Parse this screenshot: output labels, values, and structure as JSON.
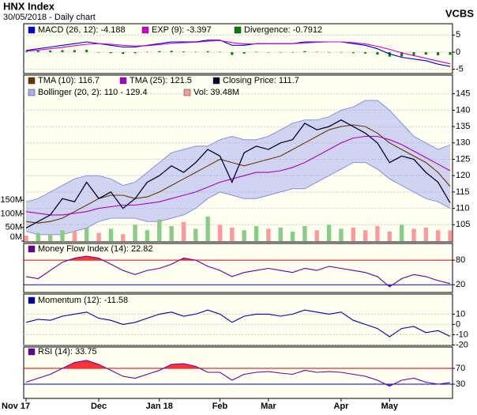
{
  "header": {
    "title": "HNX Index",
    "subtitle": "30/05/2018 - Daily chart",
    "source": "VCBS"
  },
  "chart_data": [
    {
      "type": "line",
      "ylim": [
        -6,
        6
      ],
      "yticks": [
        5,
        0,
        -5
      ],
      "series": [
        {
          "name": "MACD (26, 12): -4.188",
          "kind": "line",
          "color": "#0000cc",
          "values": [
            0.5,
            1,
            1.5,
            2,
            2.5,
            3,
            2.5,
            2,
            1.5,
            1.5,
            2,
            2.5,
            3,
            3,
            3,
            3.5,
            3.5,
            2,
            2,
            2.5,
            2.5,
            2.5,
            2.5,
            3,
            3,
            3,
            3,
            2.5,
            2,
            1,
            -0.5,
            -1.5,
            -2,
            -2.5,
            -3.5,
            -4.188
          ]
        },
        {
          "name": "EXP (9): -3.397",
          "kind": "line",
          "color": "#cc00cc",
          "values": [
            0.3,
            0.6,
            1,
            1.4,
            1.9,
            2.3,
            2.5,
            2.3,
            2,
            1.8,
            1.9,
            2.2,
            2.6,
            2.8,
            2.9,
            3.2,
            3.4,
            2.8,
            2.4,
            2.4,
            2.5,
            2.5,
            2.5,
            2.7,
            2.9,
            3,
            3,
            2.8,
            2.4,
            1.7,
            0.8,
            -0.2,
            -1,
            -1.8,
            -2.6,
            -3.397
          ]
        },
        {
          "name": "Divergence: -0.7912",
          "kind": "bar",
          "color": "#008000",
          "values": [
            0.2,
            0.4,
            0.5,
            0.6,
            0.6,
            0.7,
            0,
            -0.3,
            -0.5,
            -0.3,
            0.1,
            0.3,
            0.4,
            0.2,
            0.1,
            0.3,
            0.1,
            -0.8,
            -0.4,
            0.1,
            0,
            0,
            0,
            0.3,
            0.1,
            0,
            0,
            -0.3,
            -0.4,
            -0.7,
            -1.3,
            -1.3,
            -1,
            -0.7,
            -0.9,
            -0.7912
          ]
        }
      ]
    },
    {
      "type": "line",
      "ylim": [
        100,
        150
      ],
      "yticks": [
        105,
        110,
        115,
        120,
        125,
        130,
        135,
        140,
        145
      ],
      "y2lim": [
        0,
        600
      ],
      "y2ticks": [
        {
          "value": 0,
          "label": "0M"
        },
        {
          "value": 50,
          "label": "50M"
        },
        {
          "value": 100,
          "label": "100M"
        },
        {
          "value": 150,
          "label": "150M"
        }
      ],
      "series": [
        {
          "name": "TMA (10): 116.7",
          "kind": "line",
          "color": "#663300",
          "values": [
            106,
            105.5,
            106,
            107,
            109,
            111,
            113,
            114,
            114,
            113,
            113.5,
            115,
            117,
            119,
            121,
            123,
            125,
            124,
            123,
            124,
            125,
            126,
            128,
            130,
            132,
            134,
            135,
            135.5,
            135,
            133,
            130,
            128,
            126,
            124,
            121,
            116.7
          ]
        },
        {
          "name": "TMA (25): 121.5",
          "kind": "line",
          "color": "#aa00cc",
          "values": [
            109,
            108.5,
            108,
            108,
            108.5,
            109,
            110,
            110.5,
            111,
            111,
            111.5,
            112,
            113,
            114,
            115,
            116.5,
            118,
            119,
            120,
            121,
            121,
            121.5,
            122.5,
            124,
            126,
            128,
            130,
            131.5,
            132,
            132,
            131,
            129.5,
            127.5,
            125.5,
            123.5,
            121.5
          ]
        },
        {
          "name": "Closing Price: 111.7",
          "kind": "close",
          "color": "#000033",
          "values": [
            104,
            106,
            108,
            113,
            112,
            118,
            113,
            115,
            110,
            113,
            118,
            120,
            123,
            121,
            124,
            128,
            126,
            118,
            127,
            129,
            128,
            130,
            131,
            136,
            134,
            135,
            137,
            135,
            133,
            130,
            124,
            126,
            125,
            121,
            118,
            111.7
          ]
        },
        {
          "name": "Bollinger (20, 2): 110 - 129.4",
          "kind": "band",
          "color": "#aab0ee",
          "upper": [
            112,
            113,
            115,
            117,
            119,
            120,
            120,
            119,
            117,
            118,
            121,
            124,
            127,
            128,
            129,
            129,
            131,
            132,
            131,
            131,
            132,
            134,
            136,
            137,
            137,
            138,
            140,
            141,
            143,
            143,
            140,
            136,
            132,
            130,
            128,
            129.4
          ],
          "lower": [
            103,
            102,
            102,
            102,
            103,
            104,
            106,
            107,
            107,
            107,
            106,
            106,
            107,
            108,
            110,
            113,
            115,
            114,
            113,
            113,
            114,
            115,
            116,
            116,
            118,
            120,
            122,
            124,
            124,
            122,
            119,
            117,
            115,
            113,
            112,
            110
          ]
        },
        {
          "name": "Vol: 39.48M",
          "kind": "volume",
          "axis": "y2",
          "color": "#ff9999",
          "up_color": "#88cc88",
          "values": [
            20,
            30,
            25,
            40,
            35,
            50,
            30,
            45,
            25,
            60,
            40,
            80,
            55,
            70,
            45,
            90,
            60,
            50,
            40,
            55,
            45,
            50,
            35,
            55,
            40,
            60,
            45,
            50,
            40,
            55,
            35,
            60,
            45,
            50,
            40,
            39.48
          ]
        }
      ]
    },
    {
      "type": "line",
      "ylim": [
        5,
        115
      ],
      "yticks": [
        80,
        20
      ],
      "tick_colors": [
        "#cc0000",
        "#0000cc"
      ],
      "zones": [
        {
          "above": 80,
          "color": "#ff3333"
        },
        {
          "below": 20,
          "color": "#3333ff"
        }
      ],
      "series": [
        {
          "name": "Money Flow Index (14): 22.82",
          "kind": "line",
          "color": "#660099",
          "values": [
            40,
            35,
            55,
            75,
            85,
            90,
            85,
            70,
            55,
            45,
            55,
            60,
            70,
            85,
            80,
            65,
            55,
            40,
            50,
            55,
            60,
            55,
            50,
            60,
            55,
            65,
            60,
            55,
            50,
            40,
            15,
            35,
            45,
            40,
            30,
            22.82
          ]
        }
      ]
    },
    {
      "type": "line",
      "ylim": [
        -22,
        28
      ],
      "yticks": [
        10,
        0,
        -10,
        -20
      ],
      "series": [
        {
          "name": "Momentum (12): -11.58",
          "kind": "line",
          "color": "#0000aa",
          "values": [
            2,
            5,
            4,
            8,
            10,
            12,
            6,
            4,
            0,
            2,
            6,
            10,
            12,
            8,
            10,
            14,
            10,
            2,
            8,
            10,
            10,
            8,
            10,
            14,
            12,
            10,
            12,
            4,
            0,
            -4,
            -12,
            -4,
            -2,
            -8,
            -6,
            -11.58
          ]
        }
      ]
    },
    {
      "type": "line",
      "ylim": [
        -4,
        122
      ],
      "yticks": [
        70,
        30
      ],
      "tick_colors": [
        "#cc0000",
        "#0000cc"
      ],
      "zones": [
        {
          "above": 70,
          "color": "#ff3333"
        },
        {
          "below": 30,
          "color": "#3333ff"
        }
      ],
      "categories": [
        "Nov 17",
        null,
        null,
        null,
        null,
        null,
        "Dec",
        null,
        null,
        null,
        null,
        "Jan 18",
        null,
        null,
        null,
        null,
        "Feb",
        null,
        null,
        null,
        "Mar",
        null,
        null,
        null,
        null,
        null,
        "Apr",
        null,
        null,
        null,
        "May",
        null,
        null,
        null,
        null,
        null
      ],
      "series": [
        {
          "name": "RSI (14): 33.75",
          "kind": "line",
          "color": "#660099",
          "values": [
            35,
            45,
            55,
            70,
            85,
            90,
            80,
            65,
            50,
            45,
            55,
            65,
            80,
            82,
            75,
            60,
            60,
            40,
            55,
            60,
            62,
            58,
            55,
            65,
            60,
            62,
            60,
            55,
            50,
            40,
            25,
            40,
            45,
            35,
            30,
            33.75
          ]
        }
      ]
    }
  ]
}
